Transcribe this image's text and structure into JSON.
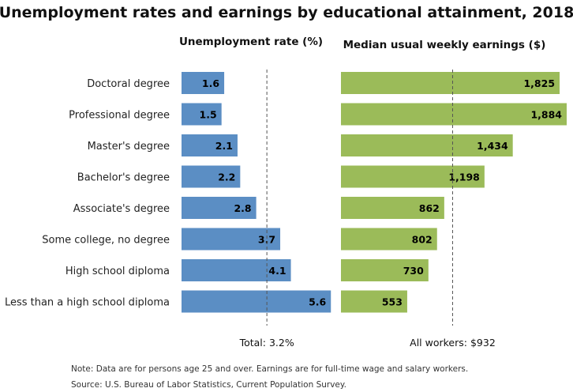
{
  "chart_data": {
    "type": "bar",
    "orientation": "horizontal",
    "title": "Unemployment rates and earnings by educational attainment, 2018",
    "categories": [
      "Doctoral degree",
      "Professional degree",
      "Master's degree",
      "Bachelor's degree",
      "Associate's degree",
      "Some college, no degree",
      "High school diploma",
      "Less than a high school diploma"
    ],
    "panels": [
      {
        "title": "Unemployment rate (%)",
        "values": [
          1.6,
          1.5,
          2.1,
          2.2,
          2.8,
          3.7,
          4.1,
          5.6
        ],
        "labels": [
          "1.6",
          "1.5",
          "2.1",
          "2.2",
          "2.8",
          "3.7",
          "4.1",
          "5.6"
        ],
        "xlim": [
          0,
          5.8
        ],
        "color": "#5b8ec4",
        "reference": {
          "value": 3.2,
          "label": "Total: 3.2%"
        }
      },
      {
        "title": "Median usual weekly earnings ($)",
        "values": [
          1825,
          1884,
          1434,
          1198,
          862,
          802,
          730,
          553
        ],
        "labels": [
          "1,825",
          "1,884",
          "1,434",
          "1,198",
          "862",
          "802",
          "730",
          "553"
        ],
        "xlim": [
          0,
          1884
        ],
        "color": "#9bbb59",
        "reference": {
          "value": 932,
          "label": "All workers: $932"
        }
      }
    ],
    "grid": false,
    "legend": "none"
  },
  "notes": [
    "Note: Data are for persons age 25 and over. Earnings are for full-time wage and salary workers.",
    "Source: U.S. Bureau of Labor Statistics, Current Population Survey."
  ]
}
